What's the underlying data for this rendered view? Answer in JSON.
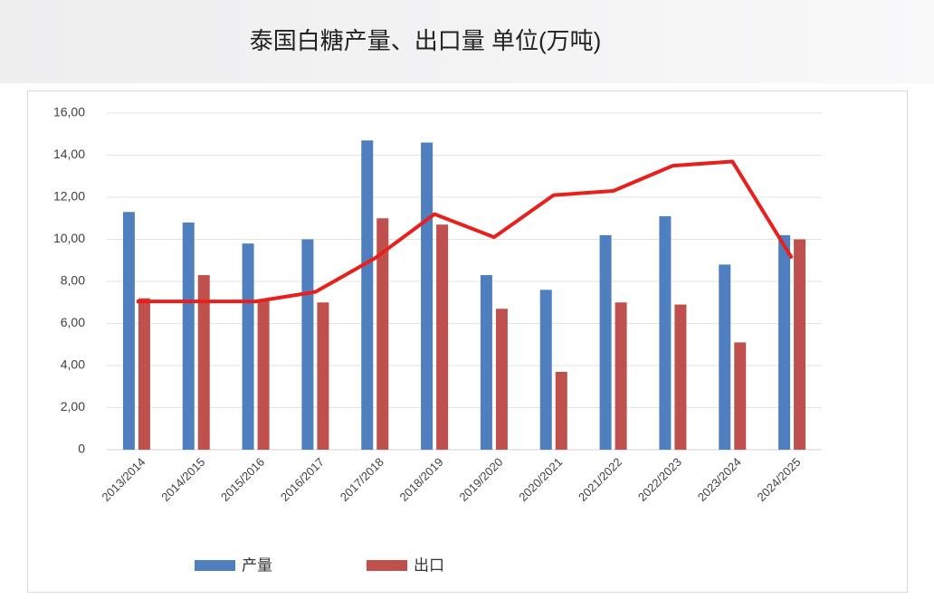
{
  "chart_data": {
    "type": "bar",
    "title": "泰国白糖产量、出口量 单位(万吨)",
    "categories": [
      "2013/2014",
      "2014/2015",
      "2015/2016",
      "2016/2017",
      "2017/2018",
      "2018/2019",
      "2019/2020",
      "2020/2021",
      "2021/2022",
      "2022/2023",
      "2023/2024",
      "2024/2025"
    ],
    "series": [
      {
        "name": "产量",
        "color": "#4f7fbf",
        "type": "bar",
        "values": [
          11.3,
          10.8,
          9.8,
          10.0,
          14.7,
          14.6,
          8.3,
          7.6,
          10.2,
          11.1,
          8.8,
          10.2
        ]
      },
      {
        "name": "出口",
        "color": "#c0504d",
        "type": "bar",
        "values": [
          7.2,
          8.3,
          7.1,
          7.0,
          11.0,
          10.7,
          6.7,
          3.7,
          7.0,
          6.9,
          5.1,
          10.0
        ]
      },
      {
        "color": "#e8201c",
        "type": "line",
        "values": [
          7.05,
          7.05,
          7.05,
          7.5,
          9.1,
          11.2,
          10.1,
          12.1,
          12.3,
          13.5,
          13.7,
          9.1
        ]
      }
    ],
    "ylim": [
      0,
      16
    ],
    "yticks": [
      0,
      {
        "value": 2,
        "label": "2,00"
      },
      {
        "value": 4,
        "label": "4,00"
      },
      {
        "value": 6,
        "label": "6,00"
      },
      {
        "value": 8,
        "label": "8,00"
      },
      {
        "value": 10,
        "label": "10,00"
      },
      {
        "value": 12,
        "label": "12,00"
      },
      {
        "value": 14,
        "label": "14,00"
      },
      {
        "value": 16,
        "label": "16,00"
      }
    ],
    "grid": true,
    "legend": "bottom"
  }
}
